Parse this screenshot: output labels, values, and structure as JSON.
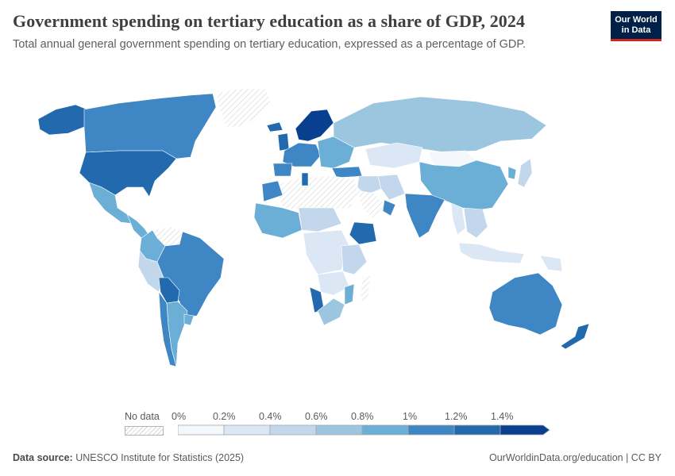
{
  "header": {
    "title": "Government spending on tertiary education as a share of GDP, 2024",
    "subtitle": "Total annual general government spending on tertiary education, expressed as a percentage of GDP."
  },
  "logo": {
    "line1": "Our World",
    "line2": "in Data"
  },
  "legend": {
    "no_data_label": "No data",
    "ticks": [
      "0%",
      "0.2%",
      "0.4%",
      "0.6%",
      "0.8%",
      "1%",
      "1.2%",
      "1.4%"
    ],
    "colors": [
      "#f4f8fc",
      "#dbe7f4",
      "#c2d7ec",
      "#9cc5e0",
      "#6baed6",
      "#3f86c4",
      "#2269ad",
      "#08408f"
    ]
  },
  "footer": {
    "source_label": "Data source:",
    "source_text": "UNESCO Institute for Statistics (2025)",
    "right_text": "OurWorldinData.org/education | CC BY"
  },
  "map_data": {
    "regions": [
      {
        "name": "Alaska",
        "value": 1.4
      },
      {
        "name": "Canada",
        "value": 1.2
      },
      {
        "name": "United States",
        "value": 1.4
      },
      {
        "name": "Greenland",
        "value": null
      },
      {
        "name": "Mexico",
        "value": 0.8
      },
      {
        "name": "Central America",
        "value": 0.9
      },
      {
        "name": "Colombia",
        "value": 0.9
      },
      {
        "name": "Venezuela",
        "value": null
      },
      {
        "name": "Brazil",
        "value": 1.1
      },
      {
        "name": "Peru",
        "value": 0.6
      },
      {
        "name": "Bolivia",
        "value": 1.4
      },
      {
        "name": "Argentina",
        "value": 0.9
      },
      {
        "name": "Chile",
        "value": 1.1
      },
      {
        "name": "Uruguay",
        "value": 0.9
      },
      {
        "name": "Western Europe",
        "value": 1.2
      },
      {
        "name": "Scandinavia",
        "value": 1.5
      },
      {
        "name": "Iceland",
        "value": 1.3
      },
      {
        "name": "United Kingdom",
        "value": 1.4
      },
      {
        "name": "Iberia",
        "value": 1.0
      },
      {
        "name": "Eastern Europe",
        "value": 0.9
      },
      {
        "name": "Russia",
        "value": 0.7
      },
      {
        "name": "Kazakhstan",
        "value": 0.2
      },
      {
        "name": "Mongolia",
        "value": 0.1
      },
      {
        "name": "China",
        "value": 0.9
      },
      {
        "name": "Japan",
        "value": 0.6
      },
      {
        "name": "Korea",
        "value": 0.8
      },
      {
        "name": "Turkey",
        "value": 1.2
      },
      {
        "name": "Middle East",
        "value": 0.4
      },
      {
        "name": "Saudi Arabia",
        "value": null
      },
      {
        "name": "Oman",
        "value": 1.2
      },
      {
        "name": "Iran",
        "value": 0.6
      },
      {
        "name": "India",
        "value": 1.2
      },
      {
        "name": "Myanmar",
        "value": 0.2
      },
      {
        "name": "Southeast Asia",
        "value": 0.5
      },
      {
        "name": "Indonesia",
        "value": 0.3
      },
      {
        "name": "Papua New Guinea",
        "value": 0.2
      },
      {
        "name": "Australia",
        "value": 1.0
      },
      {
        "name": "New Zealand",
        "value": 1.3
      },
      {
        "name": "North Africa",
        "value": null
      },
      {
        "name": "Morocco",
        "value": 1.0
      },
      {
        "name": "Tunisia",
        "value": 1.4
      },
      {
        "name": "West Africa",
        "value": 0.8
      },
      {
        "name": "Sahel",
        "value": 0.6
      },
      {
        "name": "Central Africa",
        "value": 0.2
      },
      {
        "name": "Ethiopia",
        "value": 1.4
      },
      {
        "name": "East Africa",
        "value": 0.6
      },
      {
        "name": "Southern Africa",
        "value": 0.3
      },
      {
        "name": "Namibia",
        "value": 1.4
      },
      {
        "name": "South Africa",
        "value": 0.7
      },
      {
        "name": "Madagascar",
        "value": null
      },
      {
        "name": "Mozambique",
        "value": 0.9
      }
    ]
  }
}
